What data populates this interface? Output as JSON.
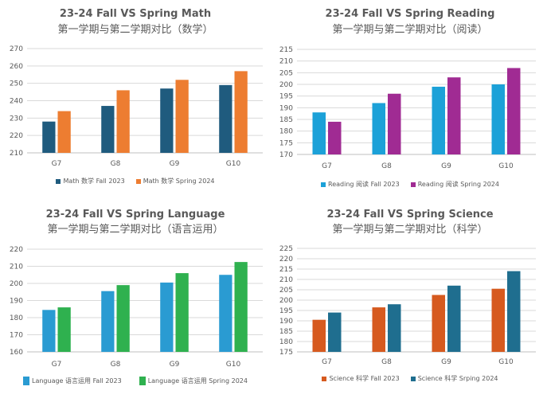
{
  "chart_data": [
    {
      "type": "bar",
      "title": "23-24 Fall VS Spring Math",
      "subtitle": "第一学期与第二学期对比（数学）",
      "categories": [
        "G7",
        "G8",
        "G9",
        "G10"
      ],
      "series": [
        {
          "name": "Math 数学 Fall 2023",
          "values": [
            228,
            237,
            247,
            249
          ],
          "color": "#1f5b7e"
        },
        {
          "name": "Math 数学 Spring 2024",
          "values": [
            234,
            246,
            252,
            257
          ],
          "color": "#ed7d31"
        }
      ],
      "ylim": [
        210,
        270
      ],
      "yticks": [
        210,
        220,
        230,
        240,
        250,
        260,
        270
      ],
      "xlabel": "",
      "ylabel": "",
      "grid": true,
      "legend": "bottom"
    },
    {
      "type": "bar",
      "title": "23-24 Fall VS Spring Reading",
      "subtitle": "第一学期与第二学期对比（阅读）",
      "categories": [
        "G7",
        "G8",
        "G9",
        "G10"
      ],
      "series": [
        {
          "name": "Reading 阅读 Fall 2023",
          "values": [
            188,
            192,
            199,
            200
          ],
          "color": "#1ca1d8"
        },
        {
          "name": "Reading 阅读 Spring 2024",
          "values": [
            184,
            196,
            203,
            207
          ],
          "color": "#a02b93"
        }
      ],
      "ylim": [
        170,
        215
      ],
      "yticks": [
        170,
        175,
        180,
        185,
        190,
        195,
        200,
        205,
        210,
        215
      ],
      "xlabel": "",
      "ylabel": "",
      "grid": true,
      "legend": "bottom"
    },
    {
      "type": "bar",
      "title": "23-24 Fall VS Spring Language",
      "subtitle": "第一学期与第二学期对比（语言运用）",
      "categories": [
        "G7",
        "G8",
        "G9",
        "G10"
      ],
      "series": [
        {
          "name": "Language 语言运用 Fall 2023",
          "values": [
            184.5,
            195.5,
            200.5,
            205
          ],
          "color": "#2a9bd2"
        },
        {
          "name": "Language 语言运用 Spring 2024",
          "values": [
            186,
            199,
            206,
            212.5
          ],
          "color": "#2fb14f"
        }
      ],
      "ylim": [
        160,
        220
      ],
      "yticks": [
        160,
        170,
        180,
        190,
        200,
        210,
        220
      ],
      "xlabel": "",
      "ylabel": "",
      "grid": true,
      "legend": "bottom"
    },
    {
      "type": "bar",
      "title": "23-24 Fall VS Spring Science",
      "subtitle": "第一学期与第二学期对比（科学）",
      "categories": [
        "G7",
        "G8",
        "G9",
        "G10"
      ],
      "series": [
        {
          "name": "Science 科学 Fall 2023",
          "values": [
            190.5,
            196.5,
            202.5,
            205.5
          ],
          "color": "#d65a1f"
        },
        {
          "name": "Science 科学 Srping 2024",
          "values": [
            194,
            198,
            207,
            214
          ],
          "color": "#1f6e8f"
        }
      ],
      "ylim": [
        175,
        225
      ],
      "yticks": [
        175,
        180,
        185,
        190,
        195,
        200,
        205,
        210,
        215,
        220,
        225
      ],
      "xlabel": "",
      "ylabel": "",
      "grid": true,
      "legend": "bottom"
    }
  ]
}
